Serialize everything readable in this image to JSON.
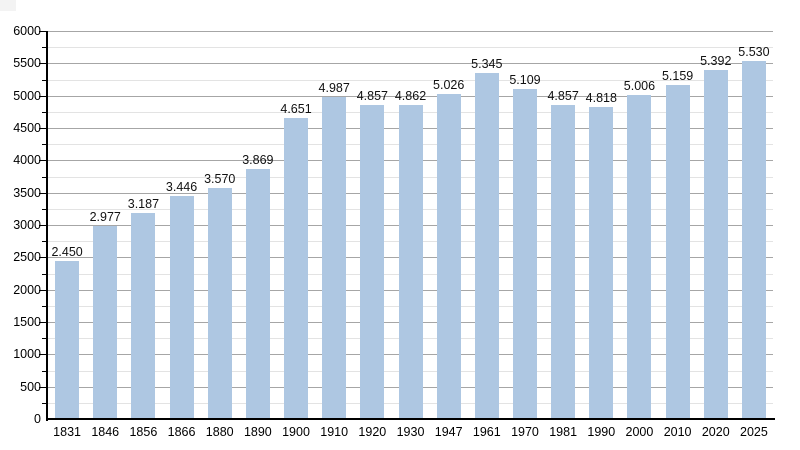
{
  "page": {
    "background_color": "#ffffff"
  },
  "chart_data": {
    "type": "bar",
    "title": "",
    "xlabel": "",
    "ylabel": "",
    "categories": [
      "1831",
      "1846",
      "1856",
      "1866",
      "1880",
      "1890",
      "1900",
      "1910",
      "1920",
      "1930",
      "1947",
      "1961",
      "1970",
      "1981",
      "1990",
      "2000",
      "2010",
      "2020",
      "2025"
    ],
    "values": [
      2450,
      2977,
      3187,
      3446,
      3570,
      3869,
      4651,
      4987,
      4857,
      4862,
      5026,
      5345,
      5109,
      4857,
      4818,
      5006,
      5159,
      5392,
      5530
    ],
    "value_labels": [
      "2.450",
      "2.977",
      "3.187",
      "3.446",
      "3.570",
      "3.869",
      "4.651",
      "4.987",
      "4.857",
      "4.862",
      "5.026",
      "5.345",
      "5.109",
      "4.857",
      "4.818",
      "5.006",
      "5.159",
      "5.392",
      "5.530"
    ],
    "y_tick_labels": [
      "0",
      "500",
      "1000",
      "1500",
      "2000",
      "2500",
      "3000",
      "3500",
      "4000",
      "4500",
      "5000",
      "5500",
      "6000"
    ],
    "ylim": [
      0,
      6000
    ],
    "y_major_step": 500,
    "y_minor_step": 250,
    "grid": true,
    "legend_position": "none",
    "bar_color": "#aec7e2",
    "major_grid_color": "#a6a6a6",
    "minor_grid_color": "#e3e3e3",
    "axis_color": "#000000",
    "label_color": "#111111"
  }
}
